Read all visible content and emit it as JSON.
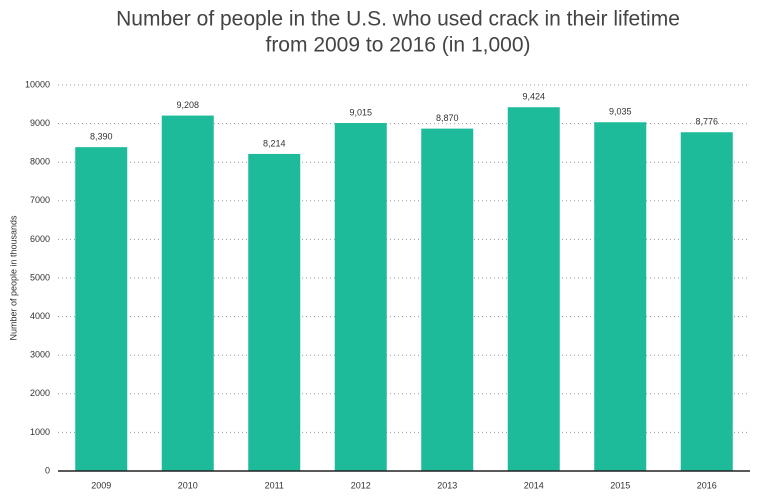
{
  "chart_data": {
    "type": "bar",
    "title": [
      "Number of people in the U.S. who used crack in their lifetime",
      "from 2009 to 2016 (in 1,000)"
    ],
    "y_label": "Number of people in thousands",
    "categories": [
      "2009",
      "2010",
      "2011",
      "2012",
      "2013",
      "2014",
      "2015",
      "2016"
    ],
    "values": [
      8390,
      9208,
      8214,
      9015,
      8870,
      9424,
      9035,
      8776
    ],
    "value_labels": [
      "8,390",
      "9,208",
      "8,214",
      "9,015",
      "8,870",
      "9,424",
      "9,035",
      "8,776"
    ],
    "color": "#1dbb99",
    "ylim": [
      0,
      10000
    ],
    "yticks": [
      0,
      1000,
      2000,
      3000,
      4000,
      5000,
      6000,
      7000,
      8000,
      9000,
      10000
    ],
    "grid": true
  }
}
